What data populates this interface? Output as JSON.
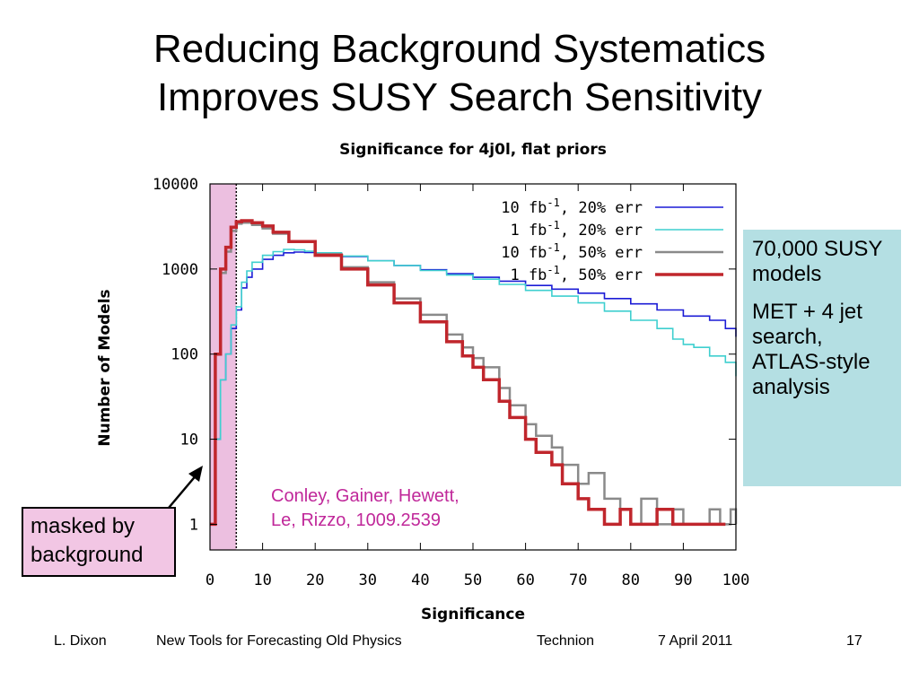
{
  "slide": {
    "title_line1": "Reducing Background Systematics",
    "title_line2": "Improves SUSY Search Sensitivity"
  },
  "callouts": {
    "models_count": "70,000 SUSY models",
    "search_desc": "MET + 4 jet search, ATLAS-style analysis",
    "masked_label": "masked by background",
    "citation_line1": "Conley, Gainer, Hewett,",
    "citation_line2": "Le, Rizzo, 1009.2539"
  },
  "footer": {
    "author": "L. Dixon",
    "talk_title": "New Tools for Forecasting Old Physics",
    "venue": "Technion",
    "date": "7 April 2011",
    "page": "17"
  },
  "colors": {
    "series_10fb_20": "#1c1cd6",
    "series_1fb_20": "#3fcfcf",
    "series_10fb_50": "#8a8a8a",
    "series_1fb_50": "#c0262c",
    "masked_region": "#e6a9d6",
    "note_box": "#b4dfe3",
    "citation": "#c0289a"
  },
  "chart_data": {
    "type": "line",
    "title": "Significance for 4j0l, flat priors",
    "xlabel": "Significance",
    "ylabel": "Number of Models",
    "y_scale": "log",
    "xlim": [
      0,
      100
    ],
    "ylim": [
      0.5,
      10000
    ],
    "x_ticks": [
      "0",
      "10",
      "20",
      "30",
      "40",
      "50",
      "60",
      "70",
      "80",
      "90",
      "100"
    ],
    "y_ticks": [
      {
        "value": 1,
        "label": "1"
      },
      {
        "value": 10,
        "label": "10"
      },
      {
        "value": 100,
        "label": "100"
      },
      {
        "value": 1000,
        "label": "1000"
      },
      {
        "value": 10000,
        "label": "10000"
      }
    ],
    "grid": false,
    "legend_position": "top-right",
    "masked_region": [
      0,
      5
    ],
    "series": [
      {
        "name_main": "10 fb",
        "name_sup": "-1",
        "name_tail": ", 20% err",
        "color_key": "series_10fb_20",
        "x": [
          0,
          1,
          2,
          3,
          4,
          5,
          6,
          7,
          8,
          10,
          12,
          14,
          16,
          18,
          20,
          25,
          30,
          35,
          40,
          45,
          50,
          55,
          60,
          65,
          70,
          75,
          80,
          85,
          90,
          95,
          98,
          100
        ],
        "y": [
          1,
          10,
          50,
          100,
          200,
          330,
          600,
          800,
          1000,
          1300,
          1450,
          1550,
          1580,
          1560,
          1520,
          1400,
          1250,
          1100,
          980,
          880,
          800,
          720,
          640,
          580,
          520,
          450,
          390,
          330,
          280,
          250,
          200,
          160
        ]
      },
      {
        "name_main": "1 fb",
        "name_sup": "-1",
        "name_tail": ", 20% err",
        "color_key": "series_1fb_20",
        "x": [
          0,
          1,
          2,
          3,
          4,
          5,
          6,
          7,
          8,
          10,
          12,
          14,
          16,
          18,
          20,
          25,
          30,
          35,
          40,
          45,
          50,
          55,
          60,
          65,
          70,
          75,
          80,
          85,
          88,
          90,
          92,
          95,
          98,
          100
        ],
        "y": [
          1,
          10,
          50,
          100,
          220,
          360,
          700,
          950,
          1200,
          1450,
          1600,
          1700,
          1680,
          1620,
          1550,
          1420,
          1250,
          1100,
          960,
          850,
          760,
          660,
          560,
          480,
          400,
          320,
          250,
          200,
          150,
          130,
          120,
          95,
          80,
          55
        ]
      },
      {
        "name_main": "10 fb",
        "name_sup": "-1",
        "name_tail": ", 50% err",
        "color_key": "series_10fb_50",
        "x": [
          0,
          1,
          2,
          3,
          4,
          5,
          6,
          8,
          10,
          12,
          15,
          20,
          25,
          30,
          35,
          40,
          45,
          48,
          50,
          52,
          55,
          57,
          60,
          62,
          65,
          67,
          70,
          72,
          75,
          78,
          80,
          82,
          85,
          88,
          90,
          93,
          95,
          97,
          99,
          100
        ],
        "y": [
          1,
          100,
          900,
          1600,
          2800,
          3400,
          3500,
          3300,
          3000,
          2600,
          2100,
          1500,
          1050,
          700,
          450,
          290,
          170,
          120,
          90,
          70,
          40,
          25,
          15,
          11,
          8,
          5,
          3,
          4,
          2,
          1.5,
          1,
          2,
          1,
          1.5,
          1,
          1,
          1.5,
          1,
          1.5,
          1
        ]
      },
      {
        "name_main": "1 fb",
        "name_sup": "-1",
        "name_tail": ", 50% err",
        "color_key": "series_1fb_50",
        "x": [
          0,
          1,
          2,
          3,
          4,
          5,
          6,
          8,
          10,
          12,
          15,
          20,
          25,
          30,
          35,
          40,
          45,
          48,
          50,
          52,
          55,
          57,
          60,
          62,
          65,
          67,
          70,
          72,
          75,
          78,
          80,
          82,
          85,
          88,
          90,
          93,
          95,
          97
        ],
        "y": [
          1,
          100,
          1000,
          1800,
          3100,
          3600,
          3700,
          3500,
          3200,
          2700,
          2100,
          1450,
          1000,
          650,
          400,
          240,
          140,
          95,
          70,
          50,
          28,
          18,
          10,
          7,
          5,
          3,
          2,
          1.5,
          1,
          1.5,
          1,
          1,
          1.5,
          1,
          1,
          1,
          1,
          1
        ]
      }
    ]
  }
}
